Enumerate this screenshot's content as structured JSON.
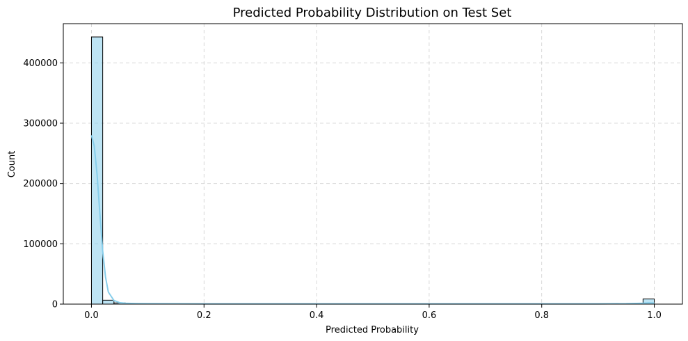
{
  "chart_data": {
    "type": "histogram",
    "title": "Predicted Probability Distribution on Test Set",
    "xlabel": "Predicted Probability",
    "ylabel": "Count",
    "xlim": [
      -0.05,
      1.05
    ],
    "ylim": [
      0,
      465000
    ],
    "x_ticks": [
      0.0,
      0.2,
      0.4,
      0.6,
      0.8,
      1.0
    ],
    "x_tick_labels": [
      "0.0",
      "0.2",
      "0.4",
      "0.6",
      "0.8",
      "1.0"
    ],
    "y_ticks": [
      0,
      100000,
      200000,
      300000,
      400000
    ],
    "y_tick_labels": [
      "0",
      "100000",
      "200000",
      "300000",
      "400000"
    ],
    "grid": true,
    "bin_width": 0.02,
    "bins": [
      {
        "x0": 0.0,
        "x1": 0.02,
        "count": 443000
      },
      {
        "x0": 0.02,
        "x1": 0.04,
        "count": 6500
      },
      {
        "x0": 0.04,
        "x1": 0.06,
        "count": 2000
      },
      {
        "x0": 0.06,
        "x1": 0.08,
        "count": 800
      },
      {
        "x0": 0.08,
        "x1": 0.1,
        "count": 400
      },
      {
        "x0": 0.1,
        "x1": 0.12,
        "count": 250
      },
      {
        "x0": 0.12,
        "x1": 0.14,
        "count": 180
      },
      {
        "x0": 0.14,
        "x1": 0.16,
        "count": 140
      },
      {
        "x0": 0.16,
        "x1": 0.18,
        "count": 110
      },
      {
        "x0": 0.18,
        "x1": 0.2,
        "count": 90
      },
      {
        "x0": 0.98,
        "x1": 1.0,
        "count": 8500
      }
    ],
    "kde": {
      "x": [
        0.0,
        0.005,
        0.01,
        0.015,
        0.02,
        0.025,
        0.03,
        0.04,
        0.05,
        0.06,
        0.08,
        0.1,
        0.15,
        0.2,
        0.4,
        0.6,
        0.8,
        0.9,
        0.95,
        0.98,
        0.99,
        1.0
      ],
      "y": [
        280000,
        262000,
        215000,
        150000,
        88000,
        45000,
        20000,
        6000,
        2500,
        1500,
        900,
        700,
        600,
        500,
        450,
        400,
        420,
        500,
        700,
        1500,
        2000,
        1800
      ]
    },
    "colors": {
      "bar_fill": "#87ceeb",
      "bar_edge": "#000000",
      "kde_line": "#87ceeb",
      "grid": "#b0b0b0"
    }
  }
}
